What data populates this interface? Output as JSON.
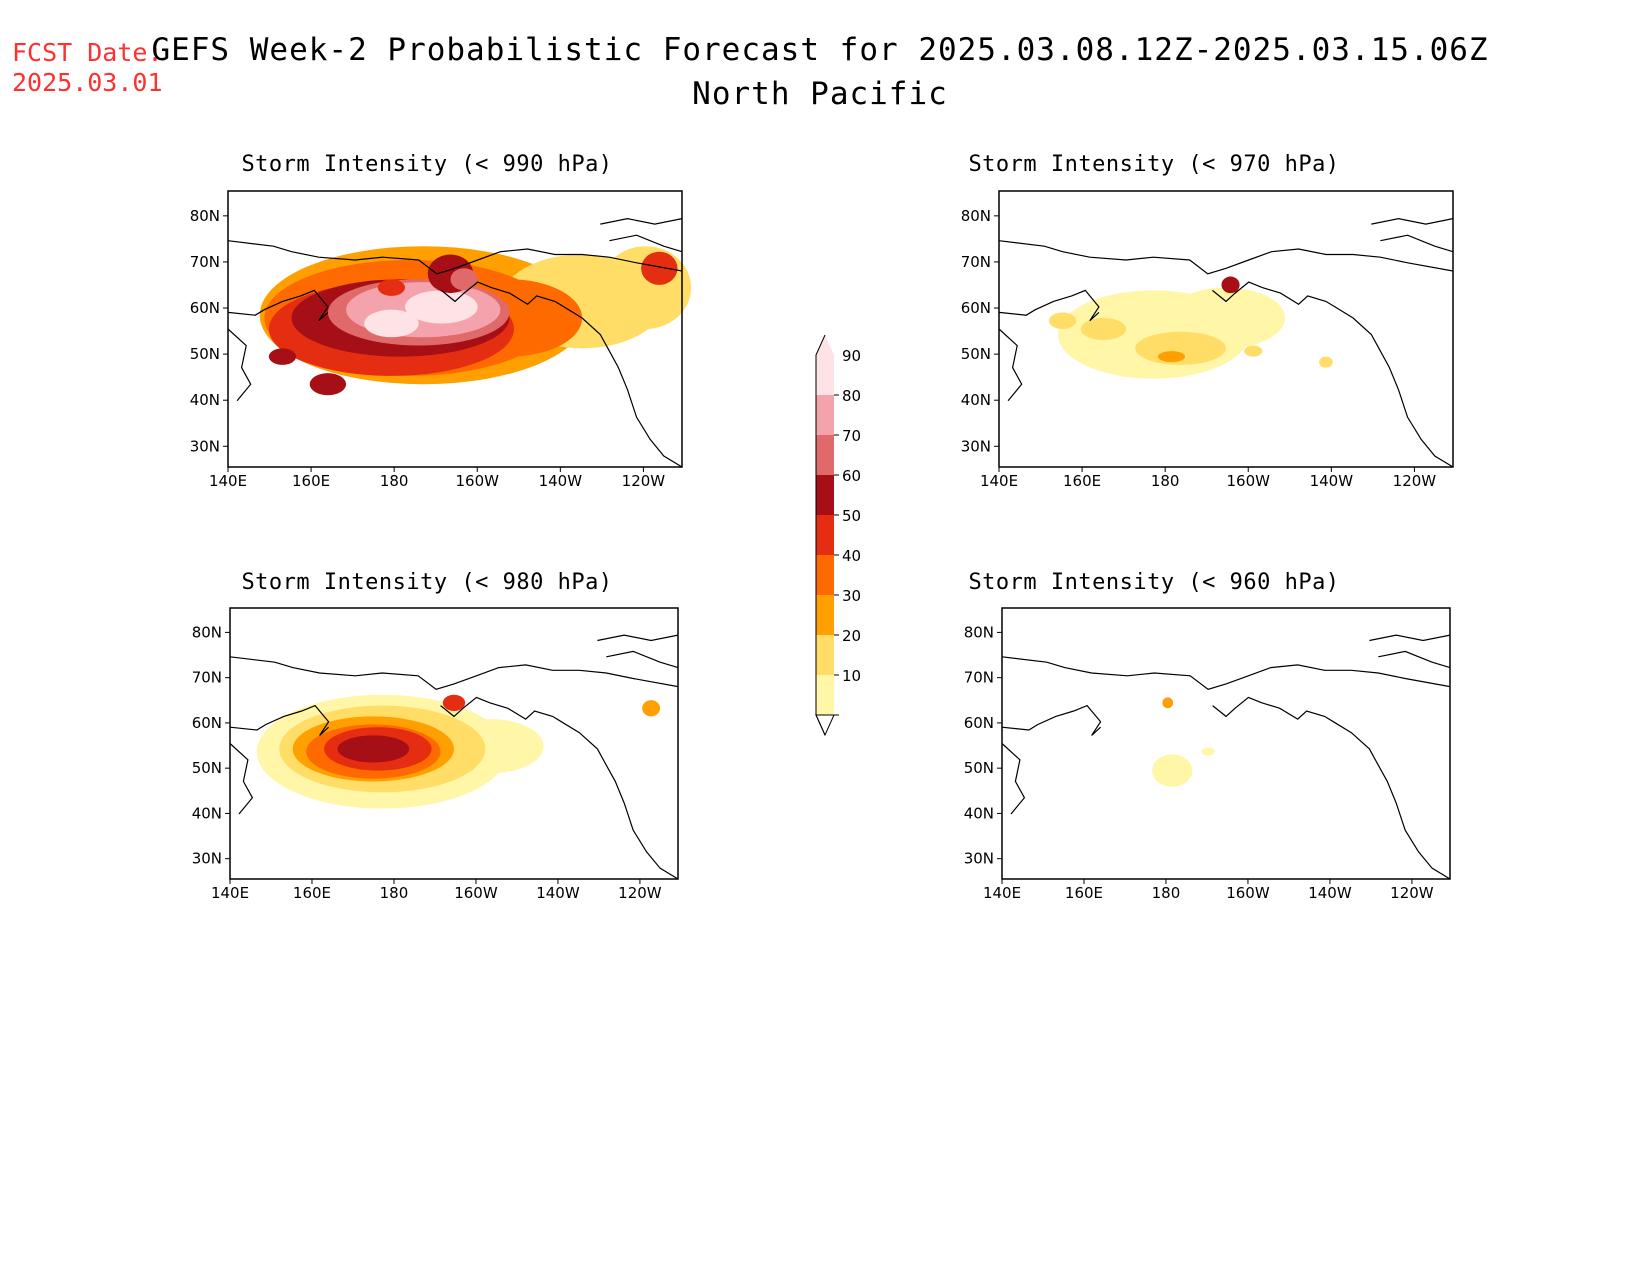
{
  "header": {
    "fcst_label": "FCST Date:",
    "fcst_date": "2025.03.01",
    "title": "GEFS Week-2 Probabilistic Forecast for 2025.03.08.12Z-2025.03.15.06Z",
    "subtitle": "North Pacific"
  },
  "axes": {
    "lon_labels": [
      "140E",
      "160E",
      "180",
      "160W",
      "140W",
      "120W"
    ],
    "lat_labels": [
      "80N",
      "70N",
      "60N",
      "50N",
      "40N",
      "30N"
    ]
  },
  "panels": [
    {
      "id": "p990",
      "title": "Storm Intensity (< 990 hPa)",
      "level": "strong"
    },
    {
      "id": "p970",
      "title": "Storm Intensity (< 970 hPa)",
      "level": "light"
    },
    {
      "id": "p980",
      "title": "Storm Intensity (< 980 hPa)",
      "level": "medium"
    },
    {
      "id": "p960",
      "title": "Storm Intensity (< 960 hPa)",
      "level": "minimal"
    }
  ],
  "colorbar": {
    "levels": [
      "90",
      "80",
      "70",
      "60",
      "50",
      "40",
      "30",
      "20",
      "10"
    ],
    "colors": [
      "#fde2e6",
      "#f4a3ac",
      "#e06a6a",
      "#a50f15",
      "#e52d12",
      "#ff6a00",
      "#ffa000",
      "#ffdd66",
      "#fff6a8"
    ]
  }
}
